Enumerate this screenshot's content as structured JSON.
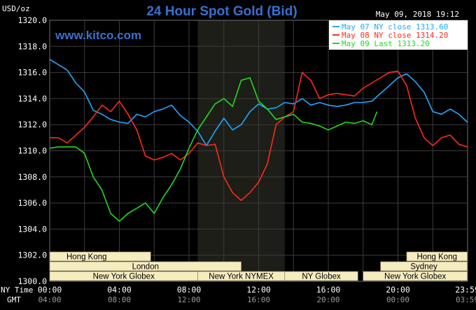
{
  "chart_data": {
    "type": "line",
    "title": "24 Hour Spot Gold (Bid)",
    "ylabel": "USD/oz",
    "timestamp": "May 09, 2018 19:12",
    "watermark": "www.kitco.com",
    "ylim": [
      1300,
      1320
    ],
    "yticks": [
      "1320.0",
      "1318.0",
      "1316.0",
      "1314.0",
      "1312.0",
      "1310.0",
      "1308.0",
      "1306.0",
      "1304.0",
      "1302.0",
      "1300.0"
    ],
    "x_ticks_ny": [
      "00:00",
      "04:00",
      "08:00",
      "12:00",
      "16:00",
      "20:00",
      "23:59"
    ],
    "x_ticks_gmt": [
      "04:00",
      "08:00",
      "12:00",
      "16:00",
      "20:00",
      "00:00",
      "03:59"
    ],
    "x_row_labels": {
      "ny": "NY Time",
      "gmt": "GMT"
    },
    "grid": true,
    "highlight_range_hours": [
      8.5,
      13.5
    ],
    "legend_position": "top-right",
    "sessions": [
      {
        "name": "Hong Kong",
        "start": 0,
        "end": 5.8
      },
      {
        "name": "London",
        "start": 0,
        "end": 11.0
      },
      {
        "name": "New York Globex",
        "start": 0,
        "end": 8.5
      },
      {
        "name": "New York NYMEX",
        "start": 8.5,
        "end": 13.5
      },
      {
        "name": "NY Globex",
        "start": 13.5,
        "end": 17.7
      },
      {
        "name": "Hong Kong",
        "start": 20.5,
        "end": 23.98
      },
      {
        "name": "Sydney",
        "start": 19.0,
        "end": 23.98
      },
      {
        "name": "New York Globex",
        "start": 18.0,
        "end": 23.98
      }
    ],
    "series": [
      {
        "name": "May 07 NY close 1313.60",
        "color": "#1fa8ff",
        "points": [
          [
            0,
            1317
          ],
          [
            0.5,
            1316.6
          ],
          [
            1,
            1316.2
          ],
          [
            1.5,
            1315.2
          ],
          [
            2,
            1314.5
          ],
          [
            2.5,
            1313.1
          ],
          [
            3,
            1312.8
          ],
          [
            3.5,
            1312.4
          ],
          [
            4,
            1312.2
          ],
          [
            4.5,
            1312.1
          ],
          [
            5,
            1312.8
          ],
          [
            5.5,
            1312.6
          ],
          [
            6,
            1313
          ],
          [
            6.5,
            1313.2
          ],
          [
            7,
            1313.5
          ],
          [
            7.5,
            1312.7
          ],
          [
            8,
            1312.2
          ],
          [
            8.5,
            1311.5
          ],
          [
            9,
            1310.4
          ],
          [
            9.5,
            1311.5
          ],
          [
            10,
            1312.5
          ],
          [
            10.5,
            1311.6
          ],
          [
            11,
            1312
          ],
          [
            11.5,
            1313
          ],
          [
            12,
            1313.6
          ],
          [
            12.5,
            1313.2
          ],
          [
            13,
            1313.3
          ],
          [
            13.5,
            1313.7
          ],
          [
            14,
            1313.6
          ],
          [
            14.5,
            1314
          ],
          [
            15,
            1313.5
          ],
          [
            15.5,
            1313.7
          ],
          [
            16,
            1313.5
          ],
          [
            16.5,
            1313.4
          ],
          [
            17,
            1313.5
          ],
          [
            17.5,
            1313.7
          ],
          [
            18,
            1313.7
          ],
          [
            18.5,
            1313.8
          ],
          [
            19,
            1314.4
          ],
          [
            19.5,
            1315
          ],
          [
            20,
            1315.6
          ],
          [
            20.5,
            1315.9
          ],
          [
            21,
            1315.3
          ],
          [
            21.5,
            1314.5
          ],
          [
            22,
            1313
          ],
          [
            22.5,
            1312.8
          ],
          [
            23,
            1313.2
          ],
          [
            23.5,
            1312.8
          ],
          [
            23.98,
            1312.2
          ]
        ]
      },
      {
        "name": "May 08 NY close 1314.20",
        "color": "#ff2a1a",
        "points": [
          [
            0,
            1311
          ],
          [
            0.5,
            1311
          ],
          [
            1,
            1310.6
          ],
          [
            1.5,
            1311.2
          ],
          [
            2,
            1311.8
          ],
          [
            2.5,
            1312.6
          ],
          [
            3,
            1313.5
          ],
          [
            3.5,
            1313
          ],
          [
            4,
            1313.8
          ],
          [
            4.5,
            1312.8
          ],
          [
            5,
            1311.6
          ],
          [
            5.5,
            1309.6
          ],
          [
            6,
            1309.3
          ],
          [
            6.5,
            1309.5
          ],
          [
            7,
            1309.8
          ],
          [
            7.5,
            1309.3
          ],
          [
            8,
            1309.8
          ],
          [
            8.5,
            1310.6
          ],
          [
            9,
            1310.4
          ],
          [
            9.5,
            1310.5
          ],
          [
            10,
            1308
          ],
          [
            10.5,
            1306.8
          ],
          [
            11,
            1306.2
          ],
          [
            11.5,
            1306.8
          ],
          [
            12,
            1307.6
          ],
          [
            12.5,
            1309
          ],
          [
            13,
            1312
          ],
          [
            13.5,
            1312.6
          ],
          [
            14,
            1313
          ],
          [
            14.5,
            1316
          ],
          [
            15,
            1315.4
          ],
          [
            15.5,
            1314
          ],
          [
            16,
            1314.3
          ],
          [
            16.5,
            1314.4
          ],
          [
            17,
            1314.3
          ],
          [
            17.5,
            1314.2
          ],
          [
            18,
            1314.8
          ],
          [
            18.5,
            1315.2
          ],
          [
            19,
            1315.6
          ],
          [
            19.5,
            1316
          ],
          [
            20,
            1316.1
          ],
          [
            20.5,
            1315
          ],
          [
            21,
            1312.5
          ],
          [
            21.5,
            1311
          ],
          [
            22,
            1310.4
          ],
          [
            22.5,
            1311
          ],
          [
            23,
            1311.2
          ],
          [
            23.5,
            1310.5
          ],
          [
            23.98,
            1310.3
          ]
        ]
      },
      {
        "name": "May 09 Last 1313.20",
        "color": "#22d822",
        "points": [
          [
            0,
            1310.2
          ],
          [
            0.5,
            1310.3
          ],
          [
            1,
            1310.3
          ],
          [
            1.5,
            1310.3
          ],
          [
            2,
            1309.8
          ],
          [
            2.5,
            1308
          ],
          [
            3,
            1307
          ],
          [
            3.5,
            1305.2
          ],
          [
            4,
            1304.6
          ],
          [
            4.5,
            1305.2
          ],
          [
            5,
            1305.6
          ],
          [
            5.5,
            1306
          ],
          [
            6,
            1305.2
          ],
          [
            6.5,
            1306.4
          ],
          [
            7,
            1307.4
          ],
          [
            7.5,
            1308.6
          ],
          [
            8,
            1310.2
          ],
          [
            8.5,
            1311.6
          ],
          [
            9,
            1312.6
          ],
          [
            9.5,
            1313.6
          ],
          [
            10,
            1314
          ],
          [
            10.5,
            1313.4
          ],
          [
            11,
            1315.4
          ],
          [
            11.5,
            1315.6
          ],
          [
            12,
            1313.8
          ],
          [
            12.5,
            1313.2
          ],
          [
            13,
            1312.4
          ],
          [
            13.5,
            1312.6
          ],
          [
            14,
            1312.8
          ],
          [
            14.5,
            1312.2
          ],
          [
            15,
            1312.1
          ],
          [
            15.5,
            1311.9
          ],
          [
            16,
            1311.6
          ],
          [
            16.5,
            1311.9
          ],
          [
            17,
            1312.2
          ],
          [
            17.5,
            1312.1
          ],
          [
            18,
            1312.3
          ],
          [
            18.5,
            1312
          ],
          [
            18.8,
            1313
          ]
        ]
      }
    ]
  }
}
